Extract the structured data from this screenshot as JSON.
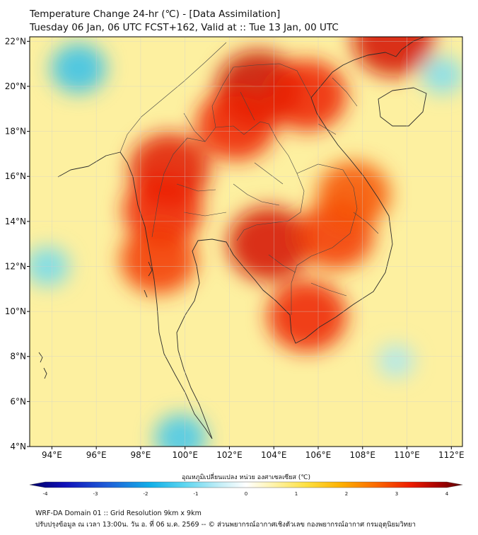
{
  "header": {
    "title_line1": "Temperature Change 24-hr (℃) - [Data Assimilation]",
    "title_line2": "Tuesday 06 Jan, 06 UTC FCST+162, Valid at :: Tue 13 Jan, 00 UTC"
  },
  "map": {
    "lon_range": [
      93,
      112.5
    ],
    "lat_range": [
      4,
      22.2
    ],
    "lon_ticks": [
      {
        "value": 94,
        "label": "94°E"
      },
      {
        "value": 96,
        "label": "96°E"
      },
      {
        "value": 98,
        "label": "98°E"
      },
      {
        "value": 100,
        "label": "100°E"
      },
      {
        "value": 102,
        "label": "102°E"
      },
      {
        "value": 104,
        "label": "104°E"
      },
      {
        "value": 106,
        "label": "106°E"
      },
      {
        "value": 108,
        "label": "108°E"
      },
      {
        "value": 110,
        "label": "110°E"
      },
      {
        "value": 112,
        "label": "112°E"
      }
    ],
    "lat_ticks": [
      {
        "value": 22,
        "label": "22°N"
      },
      {
        "value": 20,
        "label": "20°N"
      },
      {
        "value": 18,
        "label": "18°N"
      },
      {
        "value": 16,
        "label": "16°N"
      },
      {
        "value": 14,
        "label": "14°N"
      },
      {
        "value": 12,
        "label": "12°N"
      },
      {
        "value": 10,
        "label": "10°N"
      },
      {
        "value": 8,
        "label": "8°N"
      },
      {
        "value": 6,
        "label": "6°N"
      },
      {
        "value": 4,
        "label": "4°N"
      }
    ],
    "grid": true,
    "hotspots": [
      {
        "lon": 103.3,
        "lat": 19.9,
        "value": 3.3
      },
      {
        "lon": 105.5,
        "lat": 19.6,
        "value": 3.0
      },
      {
        "lon": 102.3,
        "lat": 18.3,
        "value": 3.0
      },
      {
        "lon": 99.3,
        "lat": 16.3,
        "value": 3.1
      },
      {
        "lon": 99.0,
        "lat": 14.5,
        "value": 3.0
      },
      {
        "lon": 98.8,
        "lat": 12.3,
        "value": 2.8
      },
      {
        "lon": 103.8,
        "lat": 13.0,
        "value": 3.2
      },
      {
        "lon": 106.8,
        "lat": 13.4,
        "value": 2.8
      },
      {
        "lon": 105.5,
        "lat": 9.8,
        "value": 3.0
      },
      {
        "lon": 109.4,
        "lat": 22.1,
        "value": 3.2
      },
      {
        "lon": 107.6,
        "lat": 15.2,
        "value": 2.6
      },
      {
        "lon": 95.2,
        "lat": 20.8,
        "value": -1.6
      },
      {
        "lon": 99.8,
        "lat": 4.4,
        "value": -1.4
      },
      {
        "lon": 93.8,
        "lat": 12.0,
        "value": -0.9
      },
      {
        "lon": 111.6,
        "lat": 20.5,
        "value": -0.8
      },
      {
        "lon": 109.5,
        "lat": 7.8,
        "value": -0.5
      }
    ]
  },
  "colorbar": {
    "title": "อุณหภูมิเปลี่ยนแปลง หน่วย องศาเซลเซียส (℃)",
    "min": -4,
    "max": 4,
    "ticks": [
      {
        "value": -4,
        "label": "-4"
      },
      {
        "value": -3,
        "label": "-3"
      },
      {
        "value": -2,
        "label": "-2"
      },
      {
        "value": -1,
        "label": "-1"
      },
      {
        "value": 0,
        "label": "0"
      },
      {
        "value": 1,
        "label": "1"
      },
      {
        "value": 2,
        "label": "2"
      },
      {
        "value": 3,
        "label": "3"
      },
      {
        "value": 4,
        "label": "4"
      }
    ]
  },
  "footer": {
    "line1": "WRF-DA Domain 01 :: Grid Resolution 9km x 9km",
    "line2": "ปรับปรุงข้อมูล ณ เวลา 13:00น. วัน อ. ที่ 06 ม.ค. 2569 -- © ส่วนพยากรณ์อากาศเชิงตัวเลข กองพยากรณ์อากาศ กรมอุตุนิยมวิทยา"
  }
}
